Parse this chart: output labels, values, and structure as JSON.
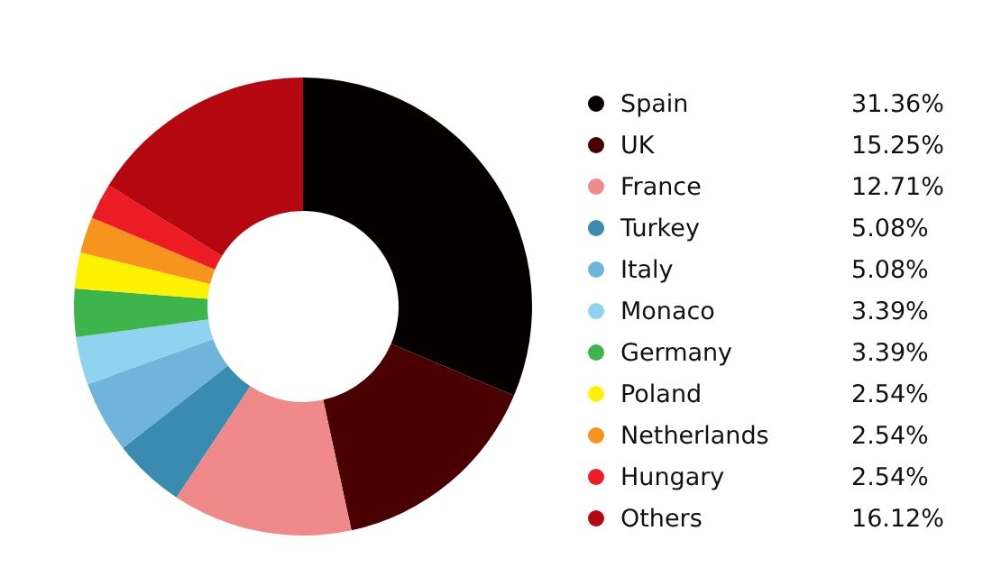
{
  "chart_data": {
    "type": "donut",
    "categories": [
      "Spain",
      "UK",
      "France",
      "Turkey",
      "Italy",
      "Monaco",
      "Germany",
      "Poland",
      "Netherlands",
      "Hungary",
      "Others"
    ],
    "values": [
      31.36,
      15.25,
      12.71,
      5.08,
      5.08,
      3.39,
      3.39,
      2.54,
      2.54,
      2.54,
      16.12
    ],
    "value_labels": [
      "31.36%",
      "15.25%",
      "12.71%",
      "5.08%",
      "5.08%",
      "3.39%",
      "3.39%",
      "2.54%",
      "2.54%",
      "2.54%",
      "16.12%"
    ],
    "colors": [
      "#050000",
      "#4a0000",
      "#f08a8a",
      "#3a8bb0",
      "#6fb4da",
      "#8fd3f0",
      "#3db54a",
      "#fff200",
      "#f7941d",
      "#ed1c24",
      "#b5070f"
    ],
    "legend": "right"
  }
}
